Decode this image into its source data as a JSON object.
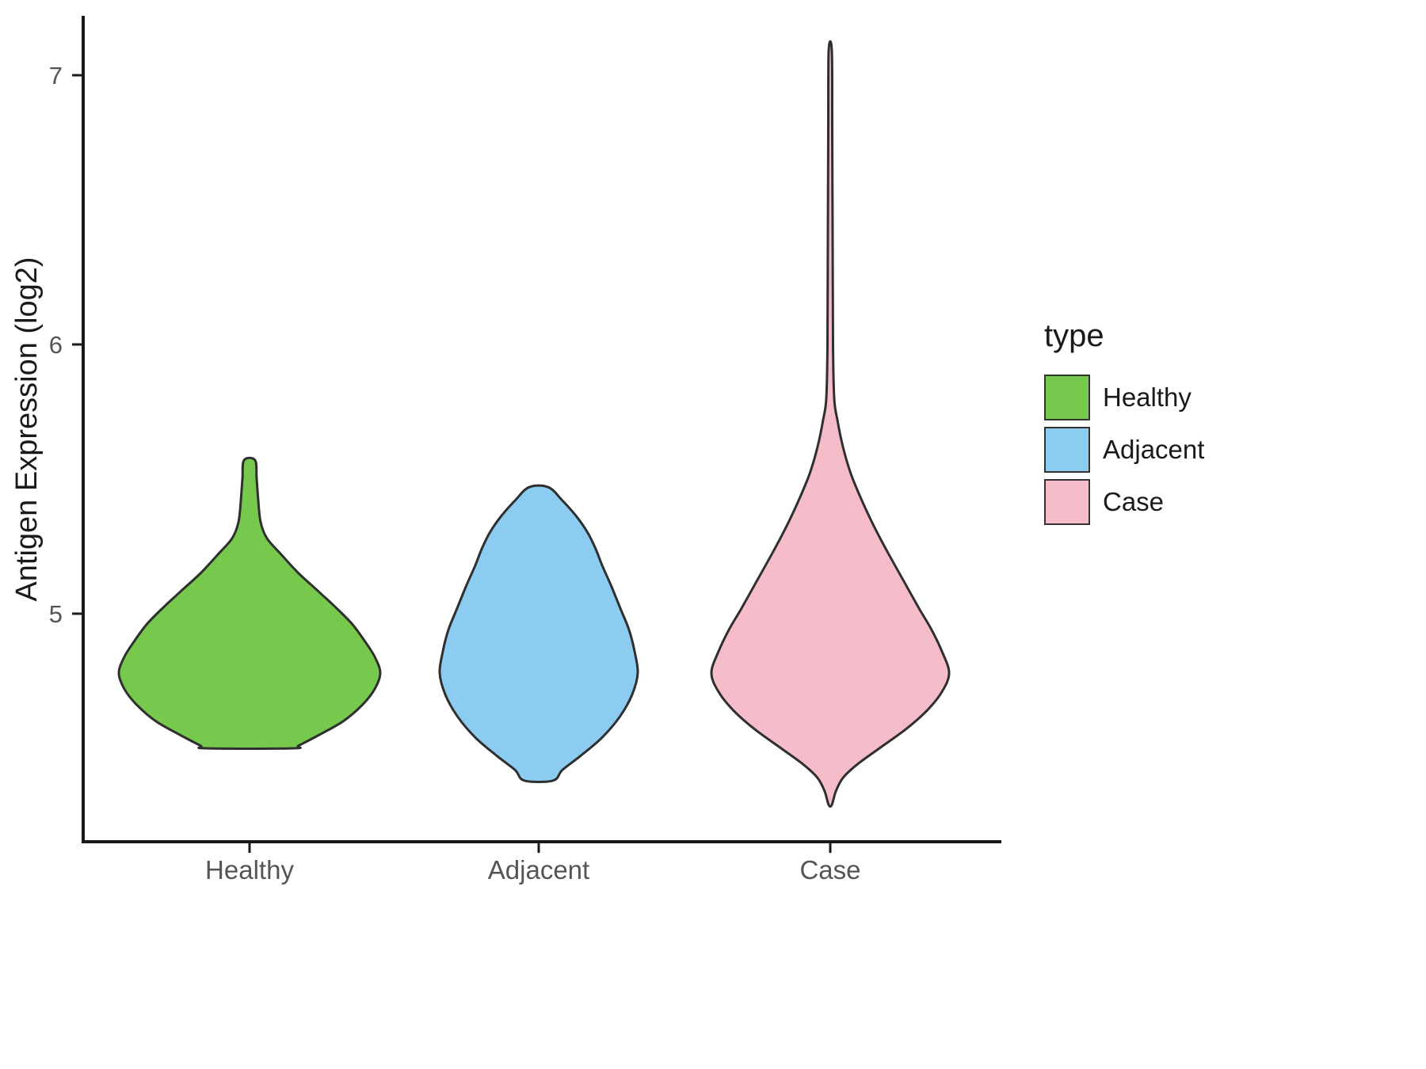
{
  "chart_data": {
    "type": "violin",
    "title": "",
    "xlabel": "",
    "ylabel": "Antigen Expression (log2)",
    "categories": [
      "Healthy",
      "Adjacent",
      "Case"
    ],
    "y_ticks": [
      5,
      6,
      7
    ],
    "ylim": [
      4.1,
      7.2
    ],
    "grid": false,
    "legend": {
      "title": "type",
      "position": "right",
      "entries": [
        {
          "label": "Healthy",
          "color": "#76c94c"
        },
        {
          "label": "Adjacent",
          "color": "#8dccf1"
        },
        {
          "label": "Case",
          "color": "#f5bdc9"
        }
      ]
    },
    "outline_color": "#2f2f2f",
    "series": [
      {
        "name": "Healthy",
        "color": "#76c94c",
        "value_range": [
          4.5,
          5.57
        ],
        "peak_value": 4.78,
        "density_profile": [
          [
            5.57,
            7
          ],
          [
            5.5,
            9
          ],
          [
            5.42,
            11
          ],
          [
            5.34,
            14
          ],
          [
            5.28,
            22
          ],
          [
            5.22,
            40
          ],
          [
            5.15,
            62
          ],
          [
            5.08,
            88
          ],
          [
            5.02,
            110
          ],
          [
            4.96,
            130
          ],
          [
            4.9,
            145
          ],
          [
            4.84,
            158
          ],
          [
            4.78,
            165
          ],
          [
            4.72,
            158
          ],
          [
            4.66,
            142
          ],
          [
            4.6,
            118
          ],
          [
            4.55,
            88
          ],
          [
            4.51,
            62
          ],
          [
            4.5,
            55
          ]
        ]
      },
      {
        "name": "Adjacent",
        "color": "#8dccf1",
        "value_range": [
          4.38,
          5.47
        ],
        "peak_value": 4.78,
        "density_profile": [
          [
            5.47,
            12
          ],
          [
            5.42,
            30
          ],
          [
            5.36,
            48
          ],
          [
            5.3,
            62
          ],
          [
            5.24,
            72
          ],
          [
            5.18,
            80
          ],
          [
            5.1,
            92
          ],
          [
            5.02,
            103
          ],
          [
            4.94,
            114
          ],
          [
            4.86,
            121
          ],
          [
            4.78,
            125
          ],
          [
            4.7,
            118
          ],
          [
            4.62,
            103
          ],
          [
            4.54,
            80
          ],
          [
            4.47,
            52
          ],
          [
            4.42,
            30
          ],
          [
            4.38,
            18
          ]
        ]
      },
      {
        "name": "Case",
        "color": "#f5bdc9",
        "value_range": [
          4.29,
          7.09
        ],
        "peak_value": 4.78,
        "density_profile": [
          [
            7.09,
            2
          ],
          [
            6.8,
            2.5
          ],
          [
            6.4,
            3
          ],
          [
            6.0,
            3.5
          ],
          [
            5.8,
            5
          ],
          [
            5.72,
            9
          ],
          [
            5.62,
            16
          ],
          [
            5.52,
            26
          ],
          [
            5.42,
            40
          ],
          [
            5.32,
            56
          ],
          [
            5.22,
            74
          ],
          [
            5.12,
            93
          ],
          [
            5.02,
            112
          ],
          [
            4.94,
            128
          ],
          [
            4.86,
            141
          ],
          [
            4.78,
            150
          ],
          [
            4.71,
            141
          ],
          [
            4.64,
            122
          ],
          [
            4.57,
            95
          ],
          [
            4.5,
            62
          ],
          [
            4.44,
            34
          ],
          [
            4.39,
            16
          ],
          [
            4.34,
            7
          ],
          [
            4.29,
            2
          ]
        ]
      }
    ]
  }
}
